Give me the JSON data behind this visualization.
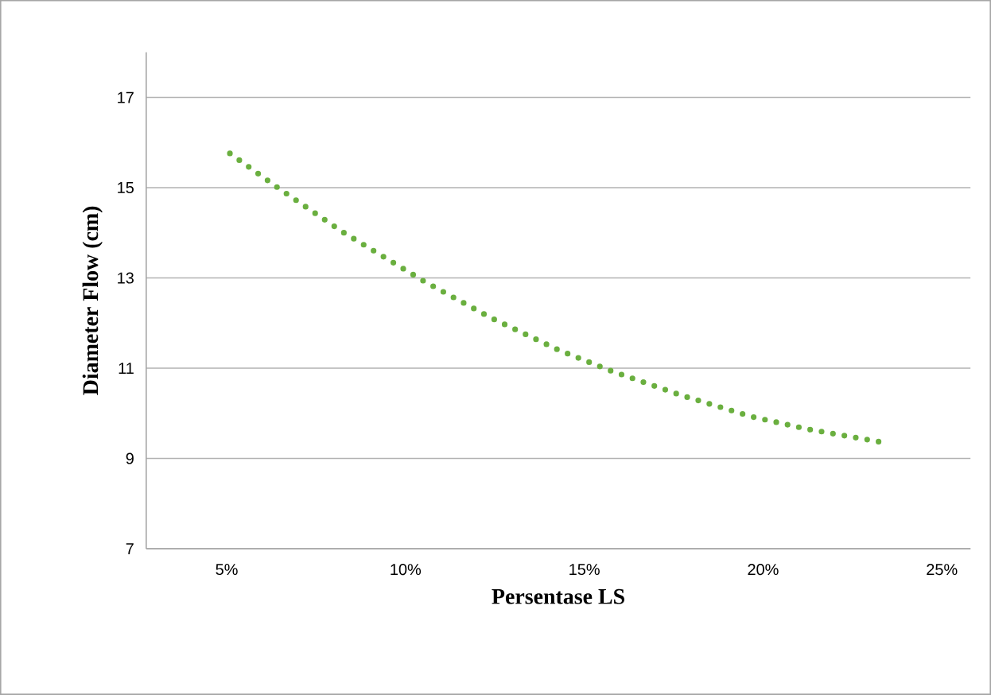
{
  "chart_data": {
    "type": "line",
    "xlabel": "Persentase LS",
    "ylabel": "Diameter Flow (cm)",
    "x": [
      5.09,
      6.43,
      8.22,
      10.51,
      12.38,
      14.29,
      15.75,
      17.71,
      19.71,
      21.24,
      23.32
    ],
    "series": [
      {
        "color": "#6aaf3f",
        "values": [
          15.76,
          15.0,
          14.03,
          12.93,
          12.12,
          11.4,
          10.94,
          10.4,
          9.92,
          9.65,
          9.36
        ]
      }
    ],
    "xlim": [
      2.75,
      25.8
    ],
    "xticks": [
      {
        "value": 5,
        "label": "5%"
      },
      {
        "value": 10,
        "label": "10%"
      },
      {
        "value": 15,
        "label": "15%"
      },
      {
        "value": 20,
        "label": "20%"
      },
      {
        "value": 25,
        "label": "25%"
      }
    ],
    "ylim": [
      7,
      18
    ],
    "yticks": [
      7,
      9,
      11,
      13,
      15,
      17
    ],
    "grid": "y",
    "line_style": "dotted"
  }
}
